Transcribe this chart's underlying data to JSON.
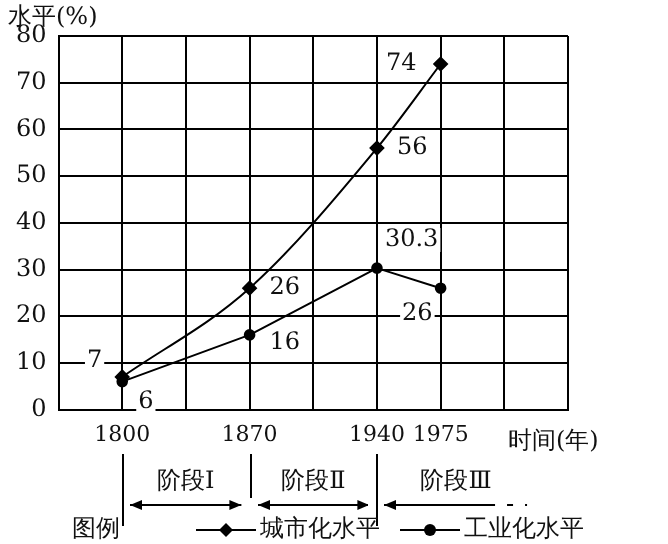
{
  "chart_data": {
    "type": "line",
    "ylabel": "水平(%)",
    "xlabel": "时间(年)",
    "legend_title": "图例",
    "legend": "bottom",
    "grid": true,
    "data_labels": true,
    "x": [
      1800,
      1870,
      1940,
      1975
    ],
    "xlim": [
      1765,
      2045
    ],
    "xticks": [
      {
        "value": 1765,
        "label": null
      },
      1800,
      {
        "value": 1835,
        "label": null
      },
      1870,
      {
        "value": 1905,
        "label": null
      },
      1940,
      1975,
      {
        "value": 2010,
        "label": null
      },
      {
        "value": 2045,
        "label": null
      }
    ],
    "ylim": [
      0,
      80
    ],
    "yticks": [
      0,
      10,
      20,
      30,
      40,
      50,
      60,
      70,
      80
    ],
    "series": [
      {
        "name": "城市化水平",
        "color": "#000000",
        "marker": "diamond",
        "values": [
          7,
          26,
          56,
          74
        ]
      },
      {
        "name": "工业化水平",
        "color": "#000000",
        "marker": "circle",
        "values": [
          6,
          16,
          30.3,
          26
        ]
      }
    ],
    "annotations": [
      "阶段Ⅰ",
      "阶段Ⅱ",
      "阶段Ⅲ"
    ]
  }
}
